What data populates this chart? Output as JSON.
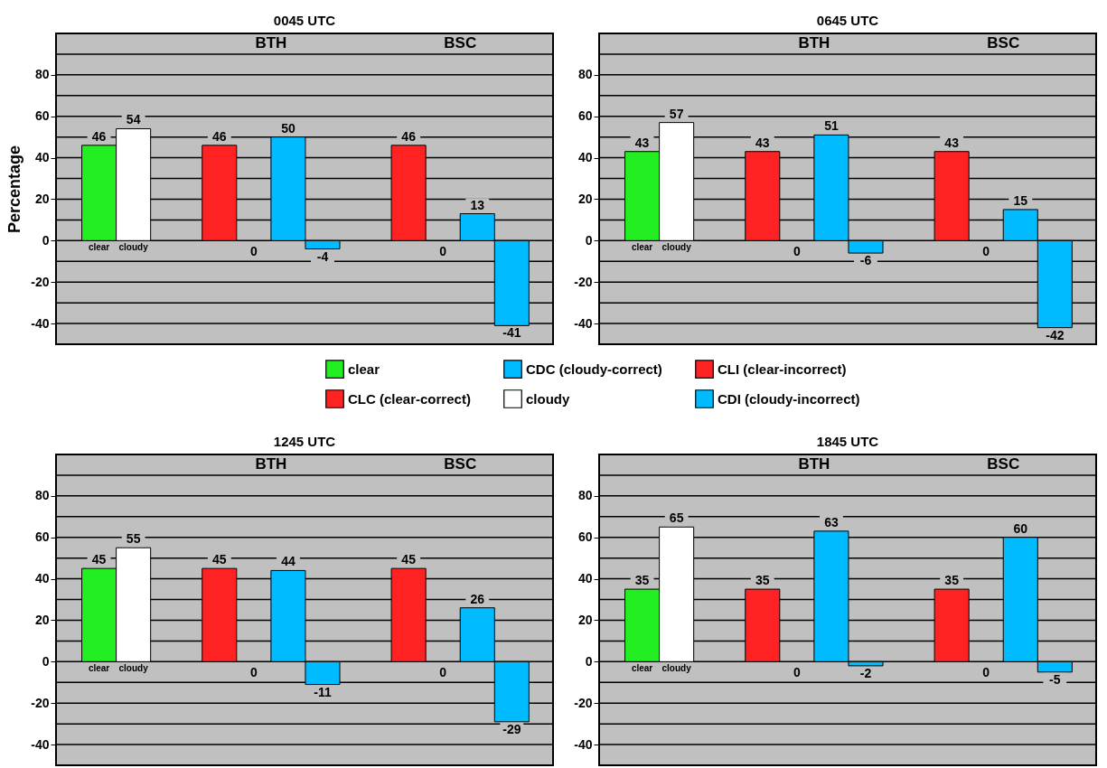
{
  "chart_data": [
    {
      "type": "bar",
      "title": "0045 UTC",
      "ylabel": "Percentage",
      "categories": [
        null,
        "BTH",
        "BSC"
      ],
      "ylim": [
        -50,
        100
      ],
      "yticks": [
        -40,
        {
          "value": -30,
          "label": null
        },
        -20,
        {
          "value": -10,
          "label": null
        },
        0,
        {
          "value": 10,
          "label": null
        },
        20,
        {
          "value": 30,
          "label": null
        },
        40,
        {
          "value": 50,
          "label": null
        },
        60,
        {
          "value": 70,
          "label": null
        },
        80,
        {
          "value": 90,
          "label": null
        }
      ],
      "grid": "y",
      "data_labels": true,
      "legend": "bottom",
      "annotations": [
        "clear",
        "cloudy"
      ],
      "series": [
        {
          "name": "clear",
          "color": "#22ee22",
          "values": [
            46,
            null,
            null
          ]
        },
        {
          "name": "cloudy",
          "color": "#ffffff",
          "values": [
            54,
            null,
            null
          ]
        },
        {
          "name": "CLC (clear-correct)",
          "color": "#ff2222",
          "values": [
            null,
            46,
            46
          ]
        },
        {
          "name": "CLI (clear-incorrect)",
          "color": "#ff2222",
          "values": [
            null,
            0,
            0
          ]
        },
        {
          "name": "CDC (cloudy-correct)",
          "color": "#00bbff",
          "values": [
            null,
            50,
            13
          ]
        },
        {
          "name": "CDI (cloudy-incorrect)",
          "color": "#00bbff",
          "values": [
            null,
            -4,
            -41
          ]
        }
      ]
    },
    {
      "type": "bar",
      "title": "0645 UTC",
      "categories": [
        null,
        "BTH",
        "BSC"
      ],
      "ylim": [
        -50,
        100
      ],
      "yticks": [
        -40,
        {
          "value": -30,
          "label": null
        },
        -20,
        {
          "value": -10,
          "label": null
        },
        0,
        {
          "value": 10,
          "label": null
        },
        20,
        {
          "value": 30,
          "label": null
        },
        40,
        {
          "value": 50,
          "label": null
        },
        60,
        {
          "value": 70,
          "label": null
        },
        80,
        {
          "value": 90,
          "label": null
        }
      ],
      "grid": "y",
      "data_labels": true,
      "annotations": [
        "clear",
        "cloudy"
      ],
      "series": [
        {
          "color": "#22ee22",
          "values": [
            43,
            null,
            null
          ]
        },
        {
          "color": "#ffffff",
          "values": [
            57,
            null,
            null
          ]
        },
        {
          "color": "#ff2222",
          "values": [
            null,
            43,
            43
          ]
        },
        {
          "color": "#ff2222",
          "values": [
            null,
            0,
            0
          ]
        },
        {
          "color": "#00bbff",
          "values": [
            null,
            51,
            15
          ]
        },
        {
          "color": "#00bbff",
          "values": [
            null,
            -6,
            -42
          ]
        }
      ]
    },
    {
      "type": "bar",
      "title": "1245 UTC",
      "categories": [
        null,
        "BTH",
        "BSC"
      ],
      "ylim": [
        -50,
        100
      ],
      "yticks": [
        -40,
        {
          "value": -30,
          "label": null
        },
        -20,
        {
          "value": -10,
          "label": null
        },
        0,
        {
          "value": 10,
          "label": null
        },
        20,
        {
          "value": 30,
          "label": null
        },
        40,
        {
          "value": 50,
          "label": null
        },
        60,
        {
          "value": 70,
          "label": null
        },
        80,
        {
          "value": 90,
          "label": null
        }
      ],
      "grid": "y",
      "data_labels": true,
      "annotations": [
        "clear",
        "cloudy"
      ],
      "series": [
        {
          "color": "#22ee22",
          "values": [
            45,
            null,
            null
          ]
        },
        {
          "color": "#ffffff",
          "values": [
            55,
            null,
            null
          ]
        },
        {
          "color": "#ff2222",
          "values": [
            null,
            45,
            45
          ]
        },
        {
          "color": "#ff2222",
          "values": [
            null,
            0,
            0
          ]
        },
        {
          "color": "#00bbff",
          "values": [
            null,
            44,
            26
          ]
        },
        {
          "color": "#00bbff",
          "values": [
            null,
            -11,
            -29
          ]
        }
      ]
    },
    {
      "type": "bar",
      "title": "1845 UTC",
      "categories": [
        null,
        "BTH",
        "BSC"
      ],
      "ylim": [
        -50,
        100
      ],
      "yticks": [
        -40,
        {
          "value": -30,
          "label": null
        },
        -20,
        {
          "value": -10,
          "label": null
        },
        0,
        {
          "value": 10,
          "label": null
        },
        20,
        {
          "value": 30,
          "label": null
        },
        40,
        {
          "value": 50,
          "label": null
        },
        60,
        {
          "value": 70,
          "label": null
        },
        80,
        {
          "value": 90,
          "label": null
        }
      ],
      "grid": "y",
      "data_labels": true,
      "annotations": [
        "clear",
        "cloudy"
      ],
      "series": [
        {
          "color": "#22ee22",
          "values": [
            35,
            null,
            null
          ]
        },
        {
          "color": "#ffffff",
          "values": [
            65,
            null,
            null
          ]
        },
        {
          "color": "#ff2222",
          "values": [
            null,
            35,
            35
          ]
        },
        {
          "color": "#ff2222",
          "values": [
            null,
            0,
            0
          ]
        },
        {
          "color": "#00bbff",
          "values": [
            null,
            63,
            60
          ]
        },
        {
          "color": "#00bbff",
          "values": [
            null,
            -2,
            -5
          ]
        }
      ]
    }
  ]
}
